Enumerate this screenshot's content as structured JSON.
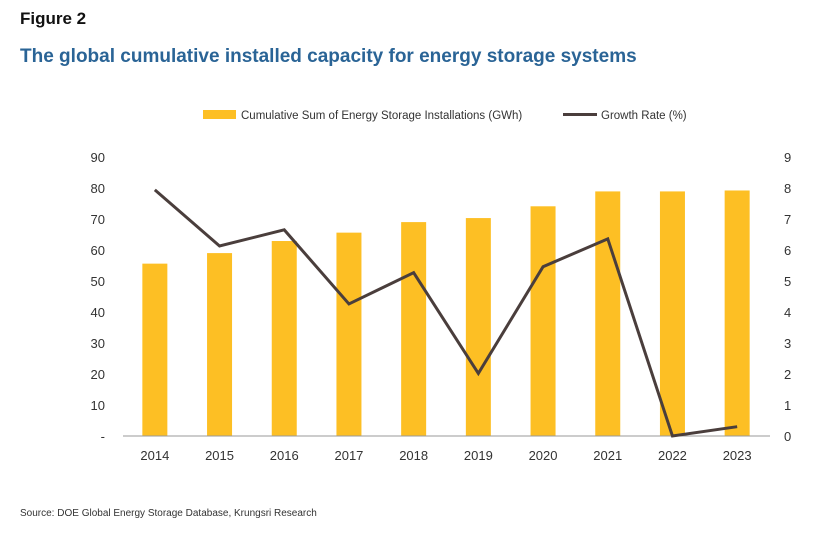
{
  "figure_label": "Figure 2",
  "title": "The global cumulative installed capacity for energy storage systems",
  "source": "Source: DOE Global Energy Storage Database, Krungsri Research",
  "chart_data": {
    "type": "bar+line",
    "categories": [
      "2014",
      "2015",
      "2016",
      "2017",
      "2018",
      "2019",
      "2020",
      "2021",
      "2022",
      "2023"
    ],
    "series": [
      {
        "name": "Cumulative Sum of Energy Storage Installations (GWh)",
        "type": "bar",
        "axis": "left",
        "color": "#FDBF24",
        "values": [
          55.6,
          59.0,
          62.9,
          65.6,
          69.0,
          70.3,
          74.1,
          78.9,
          78.9,
          79.2
        ]
      },
      {
        "name": "Growth Rate (%)",
        "type": "line",
        "axis": "right",
        "color": "#4a3e3c",
        "values": [
          7.94,
          6.13,
          6.65,
          4.26,
          5.27,
          2.02,
          5.46,
          6.36,
          0.0,
          0.3
        ]
      }
    ],
    "y_left": {
      "range": [
        0,
        90
      ],
      "ticks": [
        "-",
        "10",
        "20",
        "30",
        "40",
        "50",
        "60",
        "70",
        "80",
        "90"
      ]
    },
    "y_right": {
      "range": [
        0,
        9
      ],
      "ticks": [
        "0",
        "1",
        "2",
        "3",
        "4",
        "5",
        "6",
        "7",
        "8",
        "9"
      ]
    },
    "legend": "top",
    "grid": false
  }
}
